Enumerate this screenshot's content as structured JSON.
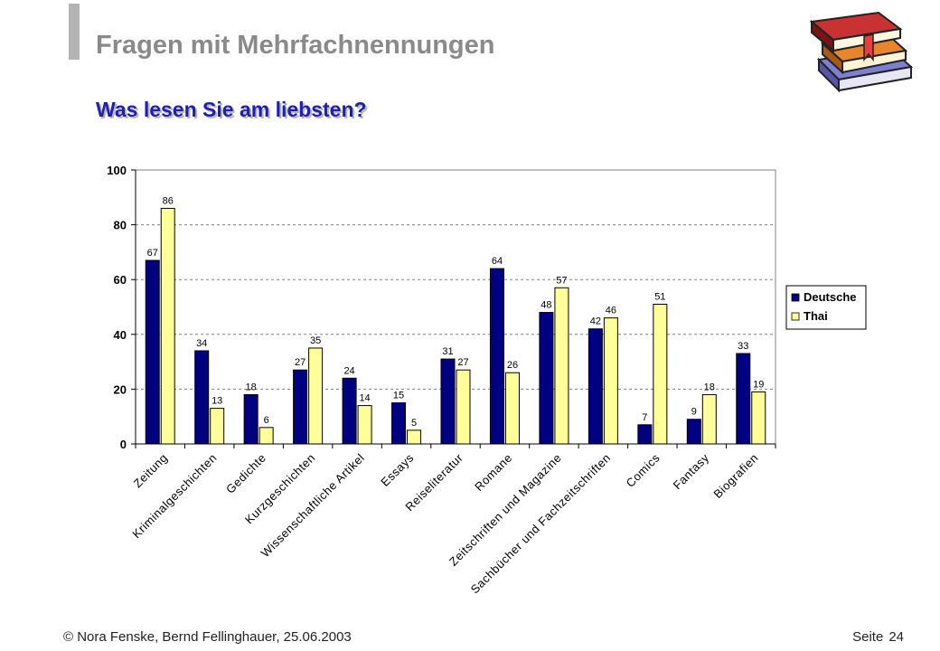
{
  "slide": {
    "title": "Fragen mit Mehrfachnennungen",
    "subtitle": "Was lesen Sie am liebsten?"
  },
  "footer": {
    "copyright": "© Nora Fenske, Bernd Fellinghauer, 25.06.2003",
    "page_label": "Seite",
    "page_number": "24"
  },
  "decor": {
    "icon": "stack-of-books-icon"
  },
  "colors": {
    "deutsche": "#000080",
    "thai": "#ffff99",
    "grid": "#808080"
  },
  "chart_data": {
    "type": "bar",
    "categories": [
      "Zeitung",
      "Kriminalgeschichten",
      "Gedichte",
      "Kurzgeschichten",
      "Wissenschaftliche Artikel",
      "Essays",
      "Reiseliteratur",
      "Romane",
      "Zeitschriften und Magazine",
      "Sachbücher und Fachzeitschriften",
      "Comics",
      "Fantasy",
      "Biografien"
    ],
    "series": [
      {
        "name": "Deutsche",
        "values": [
          67,
          34,
          18,
          27,
          24,
          15,
          31,
          64,
          48,
          42,
          7,
          9,
          33
        ]
      },
      {
        "name": "Thai",
        "values": [
          86,
          13,
          6,
          35,
          14,
          5,
          27,
          26,
          57,
          46,
          51,
          18,
          19
        ]
      }
    ],
    "ylim": [
      0,
      100
    ],
    "yticks": [
      0,
      20,
      40,
      60,
      80,
      100
    ],
    "grid": true,
    "legend": "right",
    "xlabel": "",
    "ylabel": ""
  }
}
